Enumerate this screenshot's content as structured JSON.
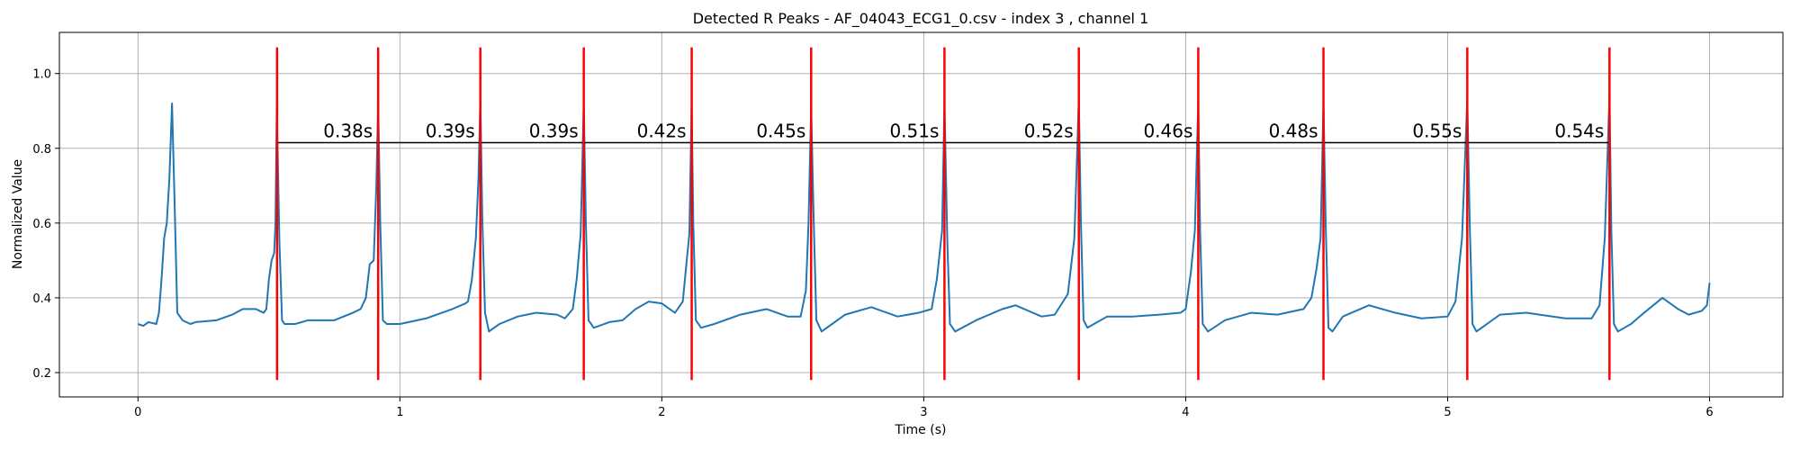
{
  "chart_data": {
    "type": "line",
    "title": "Detected R Peaks - AF_04043_ECG1_0.csv - index 3 , channel 1",
    "xlabel": "Time (s)",
    "ylabel": "Normalized Value",
    "xlim": [
      -0.3,
      6.28
    ],
    "ylim": [
      0.135,
      1.11
    ],
    "xticks": [
      0,
      1,
      2,
      3,
      4,
      5,
      6
    ],
    "yticks": [
      0.2,
      0.4,
      0.6,
      0.8,
      {
        "value": 1,
        "label": "1.0"
      }
    ],
    "grid": true,
    "x": [
      0.0,
      0.02,
      0.04,
      0.07,
      0.08,
      0.09,
      0.1,
      0.11,
      0.12,
      0.13,
      0.14,
      0.15,
      0.17,
      0.2,
      0.22,
      0.3,
      0.36,
      0.4,
      0.45,
      0.48,
      0.49,
      0.5,
      0.51,
      0.52,
      0.525,
      0.53,
      0.54,
      0.55,
      0.56,
      0.6,
      0.65,
      0.75,
      0.82,
      0.85,
      0.87,
      0.885,
      0.9,
      0.91,
      0.917,
      0.925,
      0.935,
      0.95,
      1.0,
      1.1,
      1.2,
      1.25,
      1.26,
      1.275,
      1.29,
      1.3,
      1.307,
      1.315,
      1.325,
      1.34,
      1.38,
      1.45,
      1.52,
      1.6,
      1.63,
      1.66,
      1.675,
      1.69,
      1.702,
      1.71,
      1.72,
      1.74,
      1.8,
      1.85,
      1.9,
      1.95,
      2.0,
      2.05,
      2.08,
      2.095,
      2.105,
      2.114,
      2.12,
      2.13,
      2.15,
      2.2,
      2.3,
      2.4,
      2.48,
      2.53,
      2.55,
      2.56,
      2.57,
      2.58,
      2.59,
      2.61,
      2.65,
      2.7,
      2.8,
      2.9,
      2.98,
      3.03,
      3.05,
      3.07,
      3.079,
      3.09,
      3.1,
      3.12,
      3.2,
      3.3,
      3.35,
      3.45,
      3.5,
      3.55,
      3.575,
      3.592,
      3.6,
      3.61,
      3.625,
      3.7,
      3.8,
      3.9,
      3.98,
      4.0,
      4.02,
      4.035,
      4.048,
      4.055,
      4.065,
      4.085,
      4.15,
      4.25,
      4.35,
      4.45,
      4.48,
      4.5,
      4.515,
      4.526,
      4.535,
      4.545,
      4.56,
      4.6,
      4.7,
      4.8,
      4.9,
      5.0,
      5.03,
      5.055,
      5.075,
      5.085,
      5.095,
      5.11,
      5.2,
      5.3,
      5.45,
      5.55,
      5.58,
      5.6,
      5.618,
      5.625,
      5.635,
      5.65,
      5.7,
      5.75,
      5.82,
      5.88,
      5.92,
      5.97,
      5.99,
      6.0
    ],
    "series": [
      {
        "name": "signal",
        "color": "#1f77b4",
        "values": [
          0.33,
          0.325,
          0.335,
          0.33,
          0.36,
          0.45,
          0.56,
          0.6,
          0.72,
          0.92,
          0.65,
          0.36,
          0.34,
          0.33,
          0.335,
          0.34,
          0.355,
          0.37,
          0.37,
          0.36,
          0.37,
          0.45,
          0.5,
          0.52,
          0.6,
          0.91,
          0.55,
          0.34,
          0.33,
          0.33,
          0.34,
          0.34,
          0.36,
          0.37,
          0.4,
          0.49,
          0.5,
          0.7,
          0.92,
          0.6,
          0.34,
          0.33,
          0.33,
          0.345,
          0.37,
          0.385,
          0.39,
          0.45,
          0.56,
          0.72,
          0.93,
          0.6,
          0.36,
          0.31,
          0.33,
          0.35,
          0.36,
          0.355,
          0.345,
          0.37,
          0.45,
          0.57,
          0.92,
          0.6,
          0.34,
          0.32,
          0.335,
          0.34,
          0.37,
          0.39,
          0.385,
          0.36,
          0.39,
          0.5,
          0.57,
          0.92,
          0.6,
          0.34,
          0.32,
          0.33,
          0.355,
          0.37,
          0.35,
          0.35,
          0.42,
          0.6,
          0.91,
          0.6,
          0.34,
          0.31,
          0.33,
          0.355,
          0.375,
          0.35,
          0.36,
          0.37,
          0.45,
          0.58,
          0.92,
          0.55,
          0.33,
          0.31,
          0.34,
          0.37,
          0.38,
          0.35,
          0.355,
          0.41,
          0.56,
          0.93,
          0.6,
          0.34,
          0.32,
          0.35,
          0.35,
          0.355,
          0.36,
          0.37,
          0.47,
          0.58,
          0.93,
          0.58,
          0.33,
          0.31,
          0.34,
          0.36,
          0.355,
          0.37,
          0.4,
          0.48,
          0.56,
          0.92,
          0.58,
          0.32,
          0.31,
          0.35,
          0.38,
          0.36,
          0.345,
          0.35,
          0.39,
          0.56,
          0.93,
          0.58,
          0.33,
          0.31,
          0.355,
          0.36,
          0.345,
          0.345,
          0.38,
          0.56,
          0.94,
          0.58,
          0.33,
          0.31,
          0.33,
          0.36,
          0.4,
          0.37,
          0.355,
          0.365,
          0.38,
          0.44
        ]
      }
    ],
    "peaks": {
      "x": [
        0.531,
        0.917,
        1.307,
        1.702,
        2.114,
        2.57,
        3.079,
        3.592,
        4.048,
        4.526,
        5.075,
        5.618
      ],
      "ymin": 0.18,
      "ymax": 1.07,
      "color": "#ff0000"
    },
    "interval_line": {
      "y": 0.815,
      "color": "#000000"
    },
    "interval_labels": [
      "0.38s",
      "0.39s",
      "0.39s",
      "0.42s",
      "0.45s",
      "0.51s",
      "0.52s",
      "0.46s",
      "0.48s",
      "0.55s",
      "0.54s"
    ]
  }
}
